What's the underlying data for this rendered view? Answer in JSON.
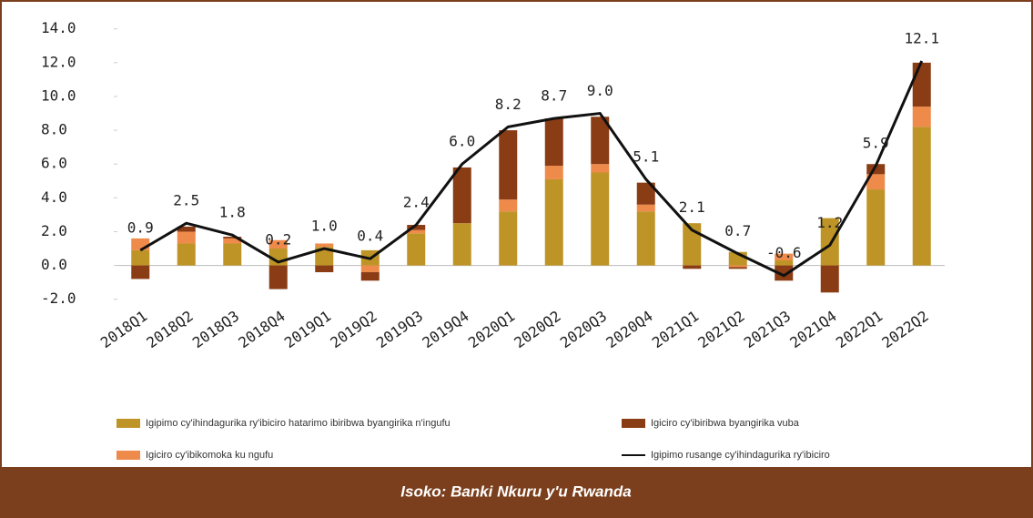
{
  "chart_data": {
    "type": "bar",
    "categories": [
      "2018Q1",
      "2018Q2",
      "2018Q3",
      "2018Q4",
      "2019Q1",
      "2019Q2",
      "2019Q3",
      "2019Q4",
      "2020Q1",
      "2020Q2",
      "2020Q3",
      "2020Q4",
      "2021Q1",
      "2021Q2",
      "2021Q3",
      "2021Q4",
      "2022Q1",
      "2022Q2"
    ],
    "series": [
      {
        "name": "Igipimo cy'ihindagurika ry'ibiciro hatarimo ibiribwa byangirika n'ingufu",
        "color": "#bf9426",
        "type": "bar",
        "values": [
          0.9,
          1.3,
          1.3,
          1.0,
          1.1,
          0.9,
          1.9,
          2.5,
          3.2,
          5.1,
          5.5,
          3.2,
          2.5,
          0.8,
          0.3,
          2.8,
          4.5,
          8.2
        ]
      },
      {
        "name": "Igiciro cy'ibikomoka ku ngufu",
        "color": "#ee8a4a",
        "type": "bar",
        "values": [
          0.7,
          0.7,
          0.3,
          0.5,
          0.2,
          -0.4,
          0.2,
          0.0,
          0.7,
          0.8,
          0.5,
          0.4,
          0.0,
          -0.1,
          0.4,
          0.0,
          0.9,
          1.2
        ]
      },
      {
        "name": "Igiciro cy'ibiribwa byangirika vuba",
        "color": "#8a3c14",
        "type": "bar",
        "values": [
          -0.8,
          0.3,
          0.1,
          -1.4,
          -0.4,
          -0.5,
          0.3,
          3.3,
          4.1,
          2.8,
          2.8,
          1.3,
          -0.2,
          -0.1,
          -0.9,
          -1.6,
          0.6,
          2.6
        ]
      },
      {
        "name": "Igipimo rusange cy'ihindagurika ry'ibiciro",
        "color": "#111111",
        "type": "line",
        "values": [
          0.9,
          2.5,
          1.8,
          0.2,
          1.0,
          0.4,
          2.4,
          6.0,
          8.2,
          8.7,
          9.0,
          5.1,
          2.1,
          0.7,
          -0.6,
          1.2,
          5.9,
          12.1
        ],
        "value_labels": [
          "0.9",
          "2.5",
          "1.8",
          "0.2",
          "1.0",
          "0.4",
          "2.4",
          "6.0",
          "8.2",
          "8.7",
          "9.0",
          "5.1",
          "2.1",
          "0.7",
          "-0.6",
          "1.2",
          "5.9",
          "12.1"
        ]
      }
    ],
    "ylim": [
      -2.5,
      14.2
    ],
    "yticks": [
      {
        "value": -2,
        "label": "-2.0"
      },
      {
        "value": 0,
        "label": "0.0"
      },
      {
        "value": 2,
        "label": "2.0"
      },
      {
        "value": 4,
        "label": "4.0"
      },
      {
        "value": 6,
        "label": "6.0"
      },
      {
        "value": 8,
        "label": "8.0"
      },
      {
        "value": 10,
        "label": "10.0"
      },
      {
        "value": 12,
        "label": "12.0"
      },
      {
        "value": 14,
        "label": "14.0"
      }
    ],
    "grid": false
  },
  "footer": "Isoko: Banki Nkuru y'u Rwanda"
}
